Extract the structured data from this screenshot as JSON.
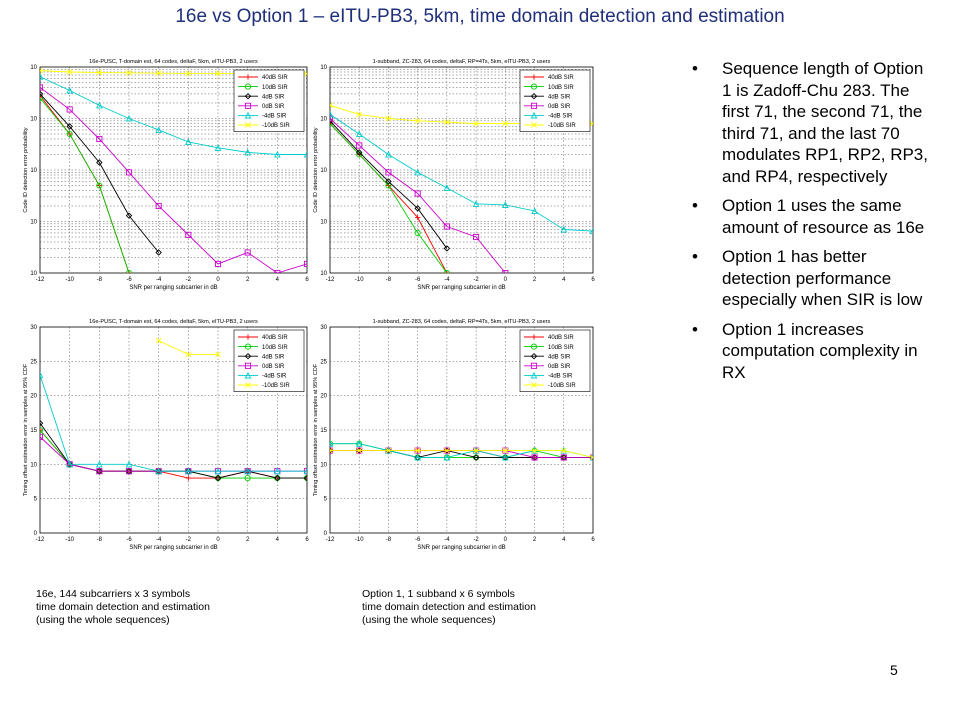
{
  "slide": {
    "title": "16e vs Option 1 – eITU-PB3, 5km, time domain detection and estimation",
    "page_number": "5"
  },
  "bullets": [
    "Sequence length of Option 1 is Zadoff-Chu 283. The first 71, the second 71, the third 71, and the last 70 modulates RP1, RP2, RP3, and RP4, respectively",
    "Option 1 uses the same amount of resource as 16e",
    "Option 1 has better detection performance especially when SIR is low",
    "Option 1 increases computation complexity in RX"
  ],
  "captions": {
    "left": [
      "16e, 144 subcarriers x 3 symbols",
      "time domain detection and estimation",
      "(using the whole sequences)"
    ],
    "right": [
      "Option 1, 1 subband x 6 symbols",
      "time domain detection and estimation",
      "(using the whole sequences)"
    ]
  },
  "colors": {
    "40dB SIR": "#ff0000",
    "10dB SIR": "#00cc00",
    "4dB SIR": "#000000",
    "0dB SIR": "#cc00cc",
    "-4dB SIR": "#00cccc",
    "-10dB SIR": "#ffff00"
  },
  "chart_data": [
    {
      "type": "line",
      "title": "16e-PUSC, T-domain est, 64 codes, deltaF, 5km, eITU-PB3, 2 users",
      "xlabel": "SNR per ranging subcarrier in dB",
      "ylabel": "Code ID detection error probability",
      "yscale": "log",
      "x": [
        -12,
        -10,
        -8,
        -6,
        -4,
        -2,
        0,
        2,
        4,
        6
      ],
      "xlim": [
        -12,
        6
      ],
      "ylim": [
        0.0001,
        1
      ],
      "xticks": [
        "-12",
        "-10",
        "-8",
        "-6",
        "-4",
        "-2",
        "0",
        "2",
        "4",
        "6"
      ],
      "yticks": [
        {
          "value": 1,
          "label": "10"
        },
        {
          "value": 0.1,
          "label": "10"
        },
        {
          "value": 0.01,
          "label": "10"
        },
        {
          "value": 0.001,
          "label": "10"
        },
        {
          "value": 0.0001,
          "label": "10"
        }
      ],
      "legend_position": "top-right",
      "series": [
        {
          "name": "40dB SIR",
          "marker": "plus",
          "x": [
            -12,
            -10,
            -8,
            -6
          ],
          "values": [
            0.28,
            0.05,
            0.005,
            0.0001
          ]
        },
        {
          "name": "10dB SIR",
          "marker": "circle",
          "x": [
            -12,
            -10,
            -8,
            -6
          ],
          "values": [
            0.25,
            0.05,
            0.005,
            0.0001
          ]
        },
        {
          "name": "4dB SIR",
          "marker": "diamond",
          "x": [
            -12,
            -10,
            -8,
            -6,
            -4
          ],
          "values": [
            0.3,
            0.07,
            0.014,
            0.0013,
            0.00025
          ]
        },
        {
          "name": "0dB SIR",
          "marker": "square",
          "x": [
            -12,
            -10,
            -8,
            -6,
            -4,
            -2,
            0,
            2,
            4,
            6
          ],
          "values": [
            0.4,
            0.15,
            0.04,
            0.009,
            0.002,
            0.00055,
            0.00015,
            0.00025,
            0.0001,
            0.00015
          ]
        },
        {
          "name": "-4dB SIR",
          "marker": "triangle",
          "x": [
            -12,
            -10,
            -8,
            -6,
            -4,
            -2,
            0,
            2,
            4,
            6
          ],
          "values": [
            0.65,
            0.35,
            0.18,
            0.1,
            0.06,
            0.035,
            0.027,
            0.022,
            0.02,
            0.02
          ]
        },
        {
          "name": "-10dB SIR",
          "marker": "x",
          "x": [
            -12,
            -10,
            -8,
            -6,
            -4,
            -2,
            0,
            2,
            4,
            6
          ],
          "values": [
            0.85,
            0.8,
            0.78,
            0.77,
            0.76,
            0.75,
            0.75,
            0.74,
            0.74,
            0.74
          ]
        }
      ]
    },
    {
      "type": "line",
      "title": "1-subband, ZC-283, 64 codes, deltaF, RP=4Ts, 5km, eITU-PB3, 2 users",
      "xlabel": "SNR per ranging subcarrier in dB",
      "ylabel": "Code ID detection error probability",
      "yscale": "log",
      "x": [
        -12,
        -10,
        -8,
        -6,
        -4,
        -2,
        0,
        2,
        4,
        6
      ],
      "xlim": [
        -12,
        6
      ],
      "ylim": [
        0.0001,
        1
      ],
      "xticks": [
        "-12",
        "-10",
        "-8",
        "-6",
        "-4",
        "-2",
        "0",
        "2",
        "4",
        "6"
      ],
      "yticks": [
        {
          "value": 1,
          "label": "10"
        },
        {
          "value": 0.1,
          "label": "10"
        },
        {
          "value": 0.01,
          "label": "10"
        },
        {
          "value": 0.001,
          "label": "10"
        },
        {
          "value": 0.0001,
          "label": "10"
        }
      ],
      "legend_position": "top-right",
      "series": [
        {
          "name": "40dB SIR",
          "marker": "plus",
          "x": [
            -12,
            -10,
            -8,
            -6,
            -4
          ],
          "values": [
            0.08,
            0.02,
            0.005,
            0.0012,
            0.0001
          ]
        },
        {
          "name": "10dB SIR",
          "marker": "circle",
          "x": [
            -12,
            -10,
            -8,
            -6,
            -4
          ],
          "values": [
            0.08,
            0.02,
            0.005,
            0.0006,
            0.0001
          ]
        },
        {
          "name": "4dB SIR",
          "marker": "diamond",
          "x": [
            -12,
            -10,
            -8,
            -6,
            -4
          ],
          "values": [
            0.09,
            0.022,
            0.006,
            0.0018,
            0.0003
          ]
        },
        {
          "name": "0dB SIR",
          "marker": "square",
          "x": [
            -12,
            -10,
            -8,
            -6,
            -4,
            -2,
            0
          ],
          "values": [
            0.1,
            0.03,
            0.009,
            0.0035,
            0.0008,
            0.0005,
            0.0001
          ]
        },
        {
          "name": "-4dB SIR",
          "marker": "triangle",
          "x": [
            -12,
            -10,
            -8,
            -6,
            -4,
            -2,
            0,
            2,
            4,
            6
          ],
          "values": [
            0.12,
            0.05,
            0.02,
            0.009,
            0.0045,
            0.0022,
            0.0021,
            0.0016,
            0.0007,
            0.00065
          ]
        },
        {
          "name": "-10dB SIR",
          "marker": "x",
          "x": [
            -12,
            -10,
            -8,
            -6,
            -4,
            -2,
            0,
            2,
            4,
            6
          ],
          "values": [
            0.18,
            0.12,
            0.1,
            0.09,
            0.085,
            0.08,
            0.08,
            0.08,
            0.08,
            0.08
          ]
        }
      ]
    },
    {
      "type": "line",
      "title": "16e-PUSC, T-domain est, 64 codes, deltaF, 5km, eITU-PB3, 2 users",
      "xlabel": "SNR per ranging subcarrier in dB",
      "ylabel": "Timing offset estimation error in samples at 95% CDF",
      "yscale": "linear",
      "x": [
        -12,
        -10,
        -8,
        -6,
        -4,
        -2,
        0,
        2,
        4,
        6
      ],
      "xlim": [
        -12,
        6
      ],
      "ylim": [
        0,
        30
      ],
      "xticks": [
        "-12",
        "-10",
        "-8",
        "-6",
        "-4",
        "-2",
        "0",
        "2",
        "4",
        "6"
      ],
      "yticks": [
        {
          "value": 0,
          "label": "0"
        },
        {
          "value": 5,
          "label": "5"
        },
        {
          "value": 10,
          "label": "10"
        },
        {
          "value": 15,
          "label": "15"
        },
        {
          "value": 20,
          "label": "20"
        },
        {
          "value": 25,
          "label": "25"
        },
        {
          "value": 30,
          "label": "30"
        }
      ],
      "legend_position": "top-right",
      "series": [
        {
          "name": "40dB SIR",
          "marker": "plus",
          "x": [
            -12,
            -10,
            -8,
            -6,
            -4,
            -2,
            0,
            2,
            4,
            6
          ],
          "values": [
            15,
            10,
            9,
            9,
            9,
            8,
            8,
            9,
            8,
            8
          ]
        },
        {
          "name": "10dB SIR",
          "marker": "circle",
          "x": [
            -12,
            -10,
            -8,
            -6,
            -4,
            -2,
            0,
            2,
            4,
            6
          ],
          "values": [
            15,
            10,
            9,
            9,
            9,
            9,
            8,
            8,
            8,
            8
          ]
        },
        {
          "name": "4dB SIR",
          "marker": "diamond",
          "x": [
            -12,
            -10,
            -8,
            -6,
            -4,
            -2,
            0,
            2,
            4,
            6
          ],
          "values": [
            16,
            10,
            9,
            9,
            9,
            9,
            8,
            9,
            8,
            8
          ]
        },
        {
          "name": "0dB SIR",
          "marker": "square",
          "x": [
            -12,
            -10,
            -8,
            -6,
            -4,
            -2,
            0,
            2,
            4,
            6
          ],
          "values": [
            14,
            10,
            9,
            9,
            9,
            9,
            9,
            9,
            9,
            9
          ]
        },
        {
          "name": "-4dB SIR",
          "marker": "triangle",
          "x": [
            -12,
            -10,
            -8,
            -6,
            -4,
            -2,
            0,
            2,
            4,
            6
          ],
          "values": [
            23,
            10,
            10,
            10,
            9,
            9,
            9,
            9,
            9,
            9
          ]
        },
        {
          "name": "-10dB SIR",
          "marker": "x",
          "x": [
            -4,
            -2,
            0
          ],
          "values": [
            28,
            26,
            26
          ]
        }
      ]
    },
    {
      "type": "line",
      "title": "1-subband, ZC-283, 64 codes, deltaF, RP=4Ts, 5km, eITU-PB3, 2 users",
      "xlabel": "SNR per ranging subcarrier in dB",
      "ylabel": "Timing offset estimation error in samples at 95% CDF",
      "yscale": "linear",
      "x": [
        -12,
        -10,
        -8,
        -6,
        -4,
        -2,
        0,
        2,
        4,
        6
      ],
      "xlim": [
        -12,
        6
      ],
      "ylim": [
        0,
        30
      ],
      "xticks": [
        "-12",
        "-10",
        "-8",
        "-6",
        "-4",
        "-2",
        "0",
        "2",
        "4",
        "6"
      ],
      "yticks": [
        {
          "value": 0,
          "label": "0"
        },
        {
          "value": 5,
          "label": "5"
        },
        {
          "value": 10,
          "label": "10"
        },
        {
          "value": 15,
          "label": "15"
        },
        {
          "value": 20,
          "label": "20"
        },
        {
          "value": 25,
          "label": "25"
        },
        {
          "value": 30,
          "label": "30"
        }
      ],
      "legend_position": "top-right",
      "series": [
        {
          "name": "40dB SIR",
          "marker": "plus",
          "x": [
            -12,
            -10,
            -8,
            -6,
            -4,
            -2,
            0,
            2,
            4,
            6
          ],
          "values": [
            12,
            12,
            12,
            12,
            12,
            12,
            11,
            11,
            11,
            11
          ]
        },
        {
          "name": "10dB SIR",
          "marker": "circle",
          "x": [
            -12,
            -10,
            -8,
            -6,
            -4,
            -2,
            0,
            2,
            4,
            6
          ],
          "values": [
            13,
            13,
            12,
            11,
            11,
            11,
            11,
            12,
            11,
            11
          ]
        },
        {
          "name": "4dB SIR",
          "marker": "diamond",
          "x": [
            -12,
            -10,
            -8,
            -6,
            -4,
            -2,
            0,
            2,
            4,
            6
          ],
          "values": [
            12,
            12,
            12,
            11,
            12,
            11,
            11,
            11,
            11,
            11
          ]
        },
        {
          "name": "0dB SIR",
          "marker": "square",
          "x": [
            -12,
            -10,
            -8,
            -6,
            -4,
            -2,
            0,
            2,
            4,
            6
          ],
          "values": [
            12,
            12,
            12,
            12,
            12,
            12,
            12,
            11,
            11,
            11
          ]
        },
        {
          "name": "-4dB SIR",
          "marker": "triangle",
          "x": [
            -12,
            -10,
            -8,
            -6,
            -4,
            -2,
            0,
            2,
            4,
            6
          ],
          "values": [
            13,
            13,
            12,
            11,
            11,
            12,
            11,
            12,
            12,
            11
          ]
        },
        {
          "name": "-10dB SIR",
          "marker": "x",
          "x": [
            -12,
            -10,
            -8,
            -6,
            -4,
            -2,
            0,
            2,
            4,
            6
          ],
          "values": [
            12,
            12,
            12,
            12,
            12,
            12,
            12,
            12,
            12,
            11
          ]
        }
      ]
    }
  ]
}
